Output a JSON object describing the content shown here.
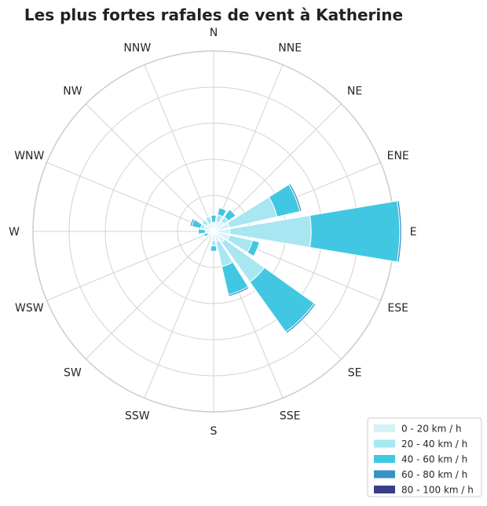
{
  "chart_data": {
    "type": "polar-bar",
    "title": "Les plus fortes rafales de vent à Katherine",
    "directions": [
      "N",
      "NNE",
      "NE",
      "ENE",
      "E",
      "ESE",
      "SE",
      "SSE",
      "S",
      "SSW",
      "SW",
      "WSW",
      "W",
      "WNW",
      "NW",
      "NNW"
    ],
    "radial_range": [
      0,
      10
    ],
    "grid": true,
    "legend_position": "bottom-right",
    "series": [
      {
        "name": "0 - 20 km / h",
        "color": "#d4f1f8",
        "values": [
          0.5,
          0.55,
          0.7,
          0.9,
          0.9,
          0.9,
          0.75,
          0.6,
          0.5,
          0.3,
          0.25,
          0.35,
          0.45,
          0.55,
          0.5,
          0.45
        ]
      },
      {
        "name": "20 - 40 km / h",
        "color": "#a8e6f2",
        "values": [
          0.0,
          0.4,
          0.3,
          2.7,
          4.5,
          1.3,
          2.7,
          1.4,
          0.3,
          0.0,
          0.0,
          0.0,
          0.0,
          0.2,
          0.3,
          0.4
        ]
      },
      {
        "name": "40 - 60 km / h",
        "color": "#41c7e1",
        "values": [
          0.4,
          0.4,
          0.5,
          1.3,
          4.9,
          0.4,
          3.4,
          1.6,
          0.3,
          0.0,
          0.0,
          0.2,
          0.4,
          0.5,
          0.0,
          0.0
        ]
      },
      {
        "name": "60 - 80 km / h",
        "color": "#3792c8",
        "values": [
          0.0,
          0.0,
          0.0,
          0.1,
          0.1,
          0.0,
          0.1,
          0.1,
          0.0,
          0.0,
          0.0,
          0.0,
          0.0,
          0.1,
          0.0,
          0.0
        ]
      },
      {
        "name": "80 - 100 km / h",
        "color": "#3a3c88",
        "values": [
          0.0,
          0.0,
          0.0,
          0.0,
          0.0,
          0.0,
          0.0,
          0.0,
          0.0,
          0.0,
          0.0,
          0.0,
          0.0,
          0.0,
          0.0,
          0.0
        ]
      }
    ]
  }
}
